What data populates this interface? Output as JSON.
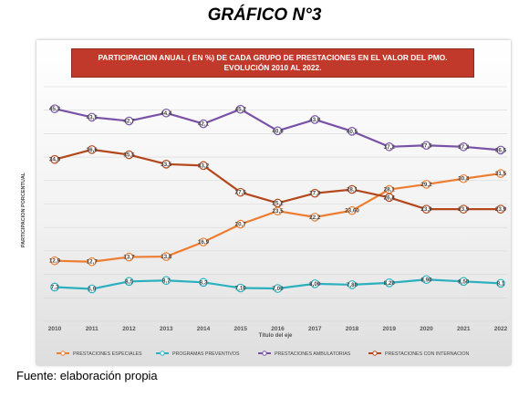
{
  "heading": "GRÁFICO N°3",
  "footer": "Fuente: elaboración propia",
  "chart_data": {
    "type": "line",
    "title_lines": [
      "PARTICIPACION ANUAL ( EN %) DE CADA GRUPO DE PRESTACIONES EN EL VALOR DEL PMO.",
      "EVOLUCIÓN 2010 AL 2022."
    ],
    "xlabel": "Título del eje",
    "ylabel": "PARTICIPACION PORCENTUAL",
    "ylim": [
      0,
      50
    ],
    "grid": true,
    "legend_position": "bottom",
    "categories": [
      "2010",
      "2011",
      "2012",
      "2013",
      "2014",
      "2015",
      "2016",
      "2017",
      "2018",
      "2019",
      "2020",
      "2021",
      "2022"
    ],
    "series": [
      {
        "name": "PRESTACIONES ESPECIALES",
        "color": "#ed7d31",
        "values": [
          12.9,
          12.7,
          13.7,
          13.8,
          16.9,
          20.7,
          23.5,
          22.2,
          23.6,
          28.1,
          29.2,
          30.4,
          31.5
        ],
        "labels": [
          "12,9",
          "12,7",
          "13,7",
          "13,8",
          "16,9",
          "20,7",
          "23,5",
          "22,2",
          "23,60",
          "28,1",
          "29,2",
          "30,4",
          "31,5"
        ]
      },
      {
        "name": "PROGRAMAS PREVENTIVOS",
        "color": "#2bb0c0",
        "values": [
          7.3,
          6.9,
          8.5,
          8.7,
          8.3,
          7.1,
          7.0,
          8.0,
          7.8,
          8.2,
          8.9,
          8.5,
          8.1
        ],
        "labels": [
          "7,3",
          "6,9",
          "8,5",
          "8,7",
          "8,3",
          "7,10",
          "7,00",
          "8,00",
          "7,80",
          "8,20",
          "8,90",
          "8,50",
          "8,1"
        ]
      },
      {
        "name": "PRESTACIONES AMBULATORIAS",
        "color": "#7952a8",
        "values": [
          45.3,
          43.5,
          42.7,
          44.4,
          42.1,
          45.2,
          40.6,
          43.0,
          40.5,
          37.2,
          37.5,
          37.2,
          36.5
        ],
        "labels": [
          "45,3",
          "43,5",
          "42,7",
          "44,4",
          "42,1",
          "45,2",
          "40,6",
          "43,0",
          "40,5",
          "37,2",
          "37,5",
          "37,2",
          "36,5"
        ]
      },
      {
        "name": "PRESTACIONES CON INTERNACION",
        "color": "#b5471c",
        "values": [
          34.5,
          36.6,
          35.5,
          33.5,
          33.2,
          27.5,
          25.2,
          27.3,
          28.1,
          26.4,
          23.9,
          23.9,
          23.9
        ],
        "labels": [
          "34,5",
          "36,6",
          "35,5",
          "33,5",
          "33,2",
          "27,5",
          "25,2",
          "27,3",
          "28,1",
          "26,4",
          "23,9",
          "23,9",
          "23,9"
        ]
      }
    ]
  }
}
